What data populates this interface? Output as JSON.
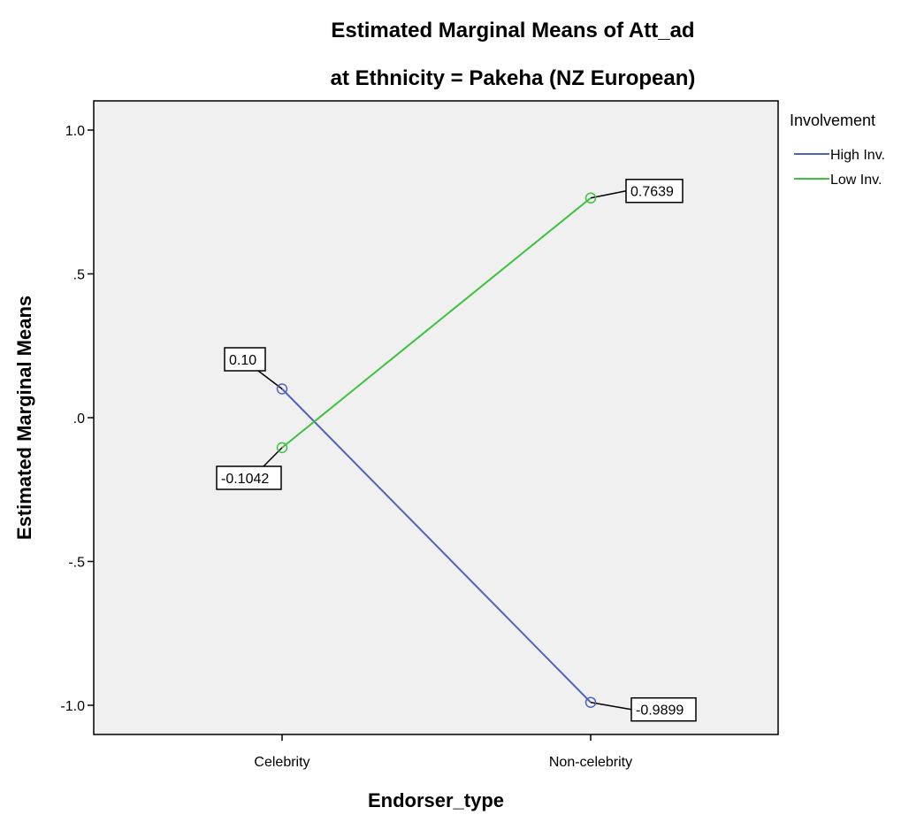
{
  "chart_data": {
    "type": "line",
    "title": "Estimated Marginal Means of Att_ad",
    "subtitle": "at Ethnicity = Pakeha (NZ European)",
    "xlabel": "Endorser_type",
    "ylabel": "Estimated Marginal Means",
    "categories": [
      "Celebrity",
      "Non-celebrity"
    ],
    "ylim": [
      -1.1,
      1.1
    ],
    "yticks": [
      1.0,
      0.5,
      0.0,
      -0.5,
      -1.0
    ],
    "ytick_labels": [
      "1.0",
      ".5",
      ".0",
      "-.5",
      "-1.0"
    ],
    "grid": false,
    "background": "#f0f0f0",
    "legend": {
      "title": "Involvement",
      "placement": "right-top"
    },
    "series": [
      {
        "name": "High Inv.",
        "color": "#4f64b8",
        "values": [
          0.1,
          -0.9899
        ],
        "labels": [
          "0.10",
          "-0.9899"
        ]
      },
      {
        "name": "Low Inv.",
        "color": "#3ec13e",
        "values": [
          -0.1042,
          0.7639
        ],
        "labels": [
          "-0.1042",
          "0.7639"
        ]
      }
    ]
  }
}
